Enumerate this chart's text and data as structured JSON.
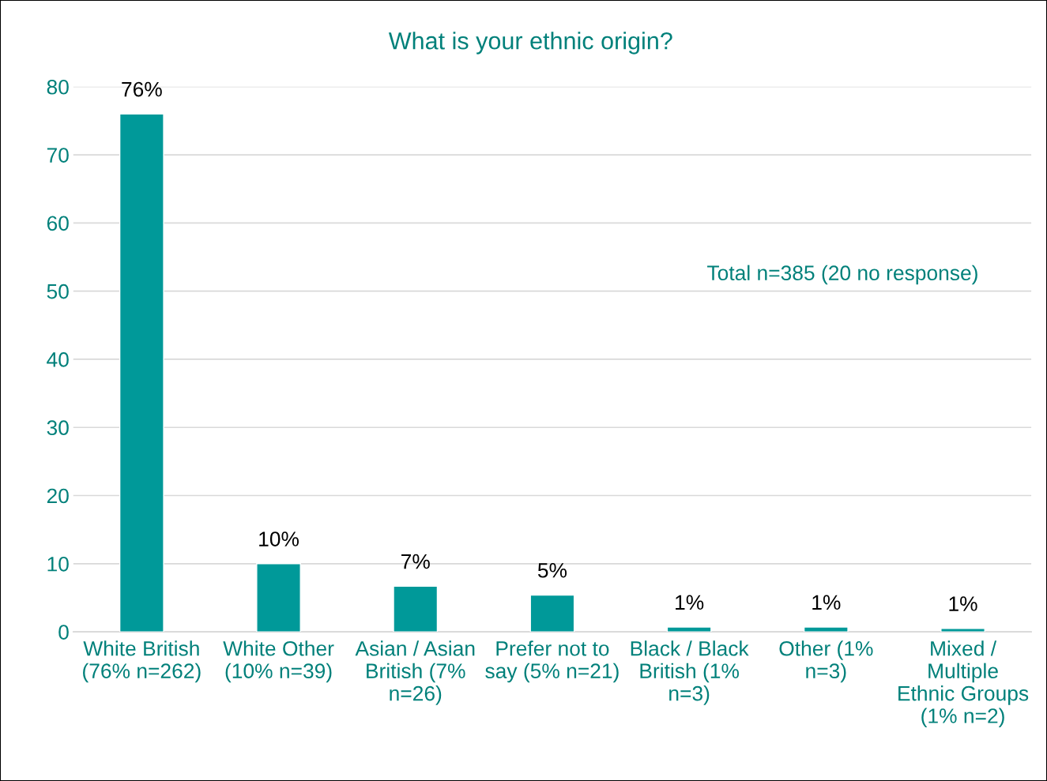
{
  "chart_data": {
    "type": "bar",
    "title": "What is your ethnic origin?",
    "categories": [
      "White British (76% n=262)",
      "White Other (10% n=39)",
      "Asian / Asian British (7% n=26)",
      "Prefer not to say (5% n=21)",
      "Black / Black British (1% n=3)",
      "Other (1% n=3)",
      "Mixed / Multiple Ethnic Groups (1% n=2)"
    ],
    "values": [
      76,
      10,
      6.7,
      5.4,
      0.7,
      0.7,
      0.5
    ],
    "value_labels": [
      "76%",
      "10%",
      "7%",
      "5%",
      "1%",
      "1%",
      "1%"
    ],
    "color": "#009999",
    "ylim": [
      0,
      80
    ],
    "yticks": [
      0,
      10,
      20,
      30,
      40,
      50,
      60,
      70,
      80
    ],
    "grid": "y",
    "annotations": [
      "Total n=385 (20 no response)"
    ]
  }
}
